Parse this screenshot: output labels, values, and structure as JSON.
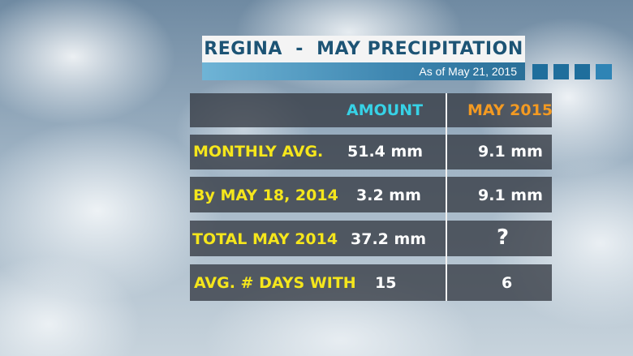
{
  "title": "REGINA  -  MAY PRECIPITATION",
  "subtitle": "As of May 21, 2015",
  "colors": {
    "title_text": "#1d5475",
    "label_text": "#f5e61c",
    "amount_header": "#37d2e6",
    "may2015_header": "#f39a22",
    "value_text": "#ffffff"
  },
  "table": {
    "headers": {
      "amount": "AMOUNT",
      "may_2015": "MAY 2015"
    },
    "rows": [
      {
        "label": "MONTHLY AVG.",
        "amount": "51.4 mm",
        "may_2015": "9.1 mm"
      },
      {
        "label": "By MAY 18, 2014",
        "amount": "3.2 mm",
        "may_2015": "9.1 mm"
      },
      {
        "label": "TOTAL MAY 2014",
        "amount": "37.2 mm",
        "may_2015": "?"
      },
      {
        "label": "AVG. # DAYS WITH",
        "amount": "15",
        "may_2015": "6"
      }
    ]
  }
}
